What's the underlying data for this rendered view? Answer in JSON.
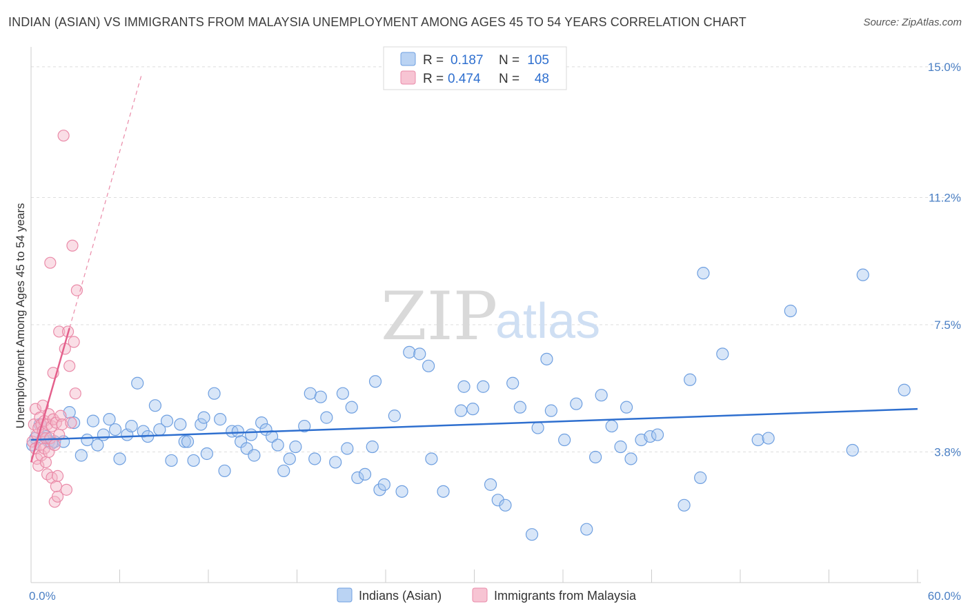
{
  "header": {
    "title": "INDIAN (ASIAN) VS IMMIGRANTS FROM MALAYSIA UNEMPLOYMENT AMONG AGES 45 TO 54 YEARS CORRELATION CHART",
    "source": "Source: ZipAtlas.com"
  },
  "watermark": {
    "part1": "ZIP",
    "part2": "atlas"
  },
  "colors": {
    "blue_fill": "#a9c8f0",
    "blue_stroke": "#6e9fe0",
    "blue_line": "#2e6fcf",
    "pink_fill": "#f5b5c8",
    "pink_stroke": "#ea8aa8",
    "pink_line": "#e4608c",
    "grid": "#dddddd",
    "tick_text": "#4a7fc4"
  },
  "legend": {
    "row1": {
      "r_label": "R =",
      "r_value": "0.187",
      "n_label": "N =",
      "n_value": "105"
    },
    "row2": {
      "r_label": "R =",
      "r_value": "0.474",
      "n_label": "N =",
      "n_value": "48"
    }
  },
  "chart_data": {
    "type": "scatter",
    "title": "INDIAN (ASIAN) VS IMMIGRANTS FROM MALAYSIA UNEMPLOYMENT AMONG AGES 45 TO 54 YEARS CORRELATION CHART",
    "xlabel": "",
    "ylabel": "Unemployment Among Ages 45 to 54 years",
    "xlim": [
      0,
      60
    ],
    "ylim": [
      0,
      15.5
    ],
    "x_tick_labels": [
      "0.0%",
      "60.0%"
    ],
    "y_ticks": [
      3.8,
      7.5,
      11.2,
      15.0
    ],
    "y_tick_labels": [
      "3.8%",
      "7.5%",
      "11.2%",
      "15.0%"
    ],
    "grid": true,
    "legend_position": "top-center",
    "series": [
      {
        "name": "Indians (Asian)",
        "r": 0.187,
        "n": 105,
        "trend": {
          "x": [
            0,
            60
          ],
          "y": [
            4.15,
            5.05
          ]
        },
        "points": [
          [
            0.3,
            4.2
          ],
          [
            0.6,
            4.6
          ],
          [
            1.0,
            4.25
          ],
          [
            1.2,
            4.1
          ],
          [
            1.6,
            4.1
          ],
          [
            2.2,
            4.1
          ],
          [
            2.6,
            4.95
          ],
          [
            2.9,
            4.65
          ],
          [
            3.4,
            3.7
          ],
          [
            3.8,
            4.15
          ],
          [
            4.2,
            4.7
          ],
          [
            4.5,
            4.0
          ],
          [
            4.9,
            4.3
          ],
          [
            5.3,
            4.75
          ],
          [
            5.7,
            4.45
          ],
          [
            6.0,
            3.6
          ],
          [
            6.5,
            4.3
          ],
          [
            6.8,
            4.55
          ],
          [
            7.2,
            5.8
          ],
          [
            7.6,
            4.4
          ],
          [
            7.9,
            4.25
          ],
          [
            8.4,
            5.15
          ],
          [
            8.7,
            4.45
          ],
          [
            9.2,
            4.7
          ],
          [
            9.5,
            3.55
          ],
          [
            10.1,
            4.6
          ],
          [
            10.4,
            4.1
          ],
          [
            10.6,
            4.1
          ],
          [
            11.0,
            3.55
          ],
          [
            11.5,
            4.6
          ],
          [
            11.7,
            4.8
          ],
          [
            11.9,
            3.75
          ],
          [
            12.4,
            5.5
          ],
          [
            12.8,
            4.75
          ],
          [
            13.1,
            3.25
          ],
          [
            13.6,
            4.4
          ],
          [
            14.0,
            4.4
          ],
          [
            14.2,
            4.1
          ],
          [
            14.6,
            3.9
          ],
          [
            14.9,
            4.3
          ],
          [
            15.1,
            3.7
          ],
          [
            15.6,
            4.65
          ],
          [
            15.9,
            4.45
          ],
          [
            16.3,
            4.25
          ],
          [
            16.7,
            4.0
          ],
          [
            17.1,
            3.25
          ],
          [
            17.5,
            3.6
          ],
          [
            17.9,
            3.95
          ],
          [
            18.5,
            4.55
          ],
          [
            18.9,
            5.5
          ],
          [
            19.2,
            3.6
          ],
          [
            19.6,
            5.4
          ],
          [
            20.0,
            4.8
          ],
          [
            20.6,
            3.5
          ],
          [
            21.1,
            5.5
          ],
          [
            21.4,
            3.9
          ],
          [
            21.7,
            5.1
          ],
          [
            22.1,
            3.05
          ],
          [
            22.6,
            3.15
          ],
          [
            23.1,
            3.95
          ],
          [
            23.3,
            5.85
          ],
          [
            23.6,
            2.7
          ],
          [
            23.9,
            2.85
          ],
          [
            24.6,
            4.85
          ],
          [
            25.1,
            2.65
          ],
          [
            25.6,
            6.7
          ],
          [
            26.3,
            6.65
          ],
          [
            26.9,
            6.3
          ],
          [
            27.1,
            3.6
          ],
          [
            27.9,
            2.65
          ],
          [
            29.1,
            5.0
          ],
          [
            29.3,
            5.7
          ],
          [
            29.9,
            5.05
          ],
          [
            30.6,
            5.7
          ],
          [
            31.1,
            2.85
          ],
          [
            31.6,
            2.4
          ],
          [
            32.1,
            2.25
          ],
          [
            32.6,
            5.8
          ],
          [
            33.1,
            5.1
          ],
          [
            33.9,
            1.4
          ],
          [
            34.3,
            4.5
          ],
          [
            34.9,
            6.5
          ],
          [
            35.2,
            5.0
          ],
          [
            36.1,
            4.15
          ],
          [
            36.9,
            5.2
          ],
          [
            37.6,
            1.55
          ],
          [
            38.2,
            3.65
          ],
          [
            38.6,
            5.45
          ],
          [
            39.3,
            4.55
          ],
          [
            39.9,
            3.95
          ],
          [
            40.3,
            5.1
          ],
          [
            40.6,
            3.6
          ],
          [
            41.3,
            4.15
          ],
          [
            41.9,
            4.25
          ],
          [
            42.4,
            4.3
          ],
          [
            44.2,
            2.25
          ],
          [
            44.6,
            5.9
          ],
          [
            45.3,
            3.05
          ],
          [
            45.5,
            9.0
          ],
          [
            46.8,
            6.65
          ],
          [
            49.2,
            4.15
          ],
          [
            49.9,
            4.2
          ],
          [
            51.4,
            7.9
          ],
          [
            55.6,
            3.85
          ],
          [
            56.3,
            8.95
          ],
          [
            59.1,
            5.6
          ],
          [
            0.1,
            4.0
          ],
          [
            1.4,
            4.05
          ],
          [
            0.8,
            4.2
          ]
        ]
      },
      {
        "name": "Immigrants from Malaysia",
        "r": 0.474,
        "n": 48,
        "trend": {
          "x": [
            0,
            2.6
          ],
          "y": [
            3.5,
            7.4
          ]
        },
        "trend_extension": {
          "x": [
            2.6,
            7.5
          ],
          "y": [
            7.4,
            14.8
          ]
        },
        "points": [
          [
            0.1,
            4.1
          ],
          [
            0.2,
            4.6
          ],
          [
            0.3,
            3.9
          ],
          [
            0.3,
            5.05
          ],
          [
            0.4,
            4.3
          ],
          [
            0.4,
            3.6
          ],
          [
            0.5,
            4.5
          ],
          [
            0.5,
            3.4
          ],
          [
            0.6,
            4.8
          ],
          [
            0.6,
            4.0
          ],
          [
            0.7,
            4.6
          ],
          [
            0.7,
            3.7
          ],
          [
            0.8,
            4.4
          ],
          [
            0.8,
            5.15
          ],
          [
            0.9,
            3.9
          ],
          [
            0.9,
            4.7
          ],
          [
            1.0,
            4.2
          ],
          [
            1.0,
            3.5
          ],
          [
            1.1,
            4.6
          ],
          [
            1.1,
            3.15
          ],
          [
            1.2,
            4.9
          ],
          [
            1.2,
            3.8
          ],
          [
            1.3,
            9.3
          ],
          [
            1.3,
            4.2
          ],
          [
            1.4,
            4.55
          ],
          [
            1.4,
            3.05
          ],
          [
            1.5,
            4.75
          ],
          [
            1.5,
            6.1
          ],
          [
            1.6,
            4.0
          ],
          [
            1.6,
            2.35
          ],
          [
            1.7,
            2.8
          ],
          [
            1.7,
            4.65
          ],
          [
            1.8,
            2.5
          ],
          [
            1.8,
            3.1
          ],
          [
            1.9,
            7.3
          ],
          [
            1.9,
            4.3
          ],
          [
            2.0,
            4.85
          ],
          [
            2.1,
            4.6
          ],
          [
            2.2,
            13.0
          ],
          [
            2.3,
            6.8
          ],
          [
            2.4,
            2.7
          ],
          [
            2.5,
            7.3
          ],
          [
            2.6,
            6.3
          ],
          [
            2.7,
            4.65
          ],
          [
            2.8,
            9.8
          ],
          [
            2.9,
            7.0
          ],
          [
            3.0,
            5.5
          ],
          [
            3.1,
            8.5
          ]
        ]
      }
    ]
  },
  "bottom_legend": {
    "item1": "Indians (Asian)",
    "item2": "Immigrants from Malaysia"
  }
}
